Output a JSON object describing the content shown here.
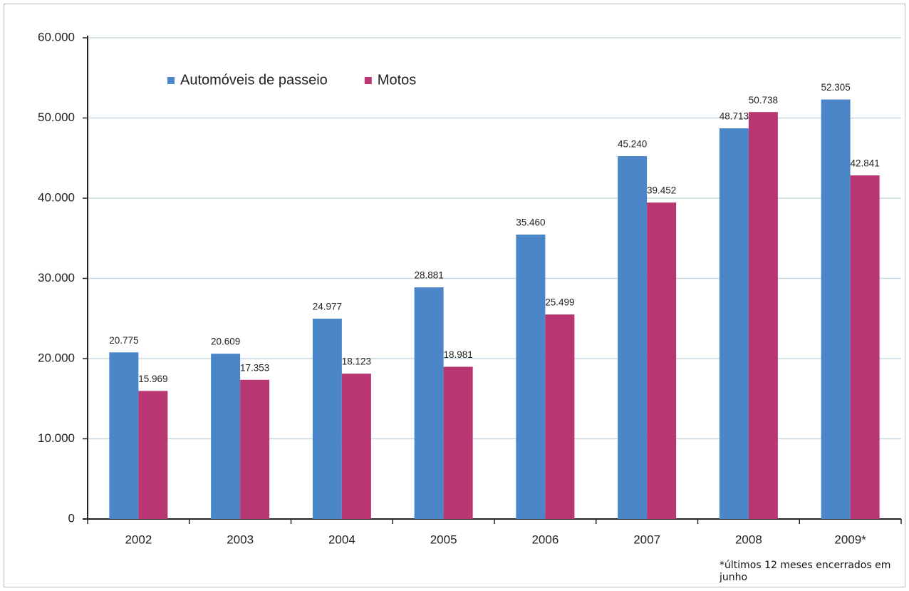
{
  "chart_data": {
    "type": "bar",
    "categories": [
      "2002",
      "2003",
      "2004",
      "2005",
      "2006",
      "2007",
      "2008",
      "2009*"
    ],
    "series": [
      {
        "name": "Automóveis de passeio",
        "color": "#4a86c8",
        "values": [
          20775,
          20609,
          24977,
          28881,
          35460,
          45240,
          48713,
          52305
        ],
        "value_labels": [
          "20.775",
          "20.609",
          "24.977",
          "28.881",
          "35.460",
          "45.240",
          "48.713",
          "52.305"
        ]
      },
      {
        "name": "Motos",
        "color": "#b83672",
        "values": [
          15969,
          17353,
          18123,
          18981,
          25499,
          39452,
          50738,
          42841
        ],
        "value_labels": [
          "15.969",
          "17.353",
          "18.123",
          "18.981",
          "25.499",
          "39.452",
          "50.738",
          "42.841"
        ]
      }
    ],
    "ylim": [
      0,
      60000
    ],
    "yticks": [
      0,
      {
        "value": 10000,
        "label": "10.000"
      },
      {
        "value": 20000,
        "label": "20.000"
      },
      {
        "value": 30000,
        "label": "30.000"
      },
      {
        "value": 40000,
        "label": "40.000"
      },
      {
        "value": 50000,
        "label": "50.000"
      },
      {
        "value": 60000,
        "label": "60.000"
      }
    ],
    "grid": true,
    "legend": "top-left",
    "annotation": "*últimos 12 meses encerrados em junho"
  }
}
